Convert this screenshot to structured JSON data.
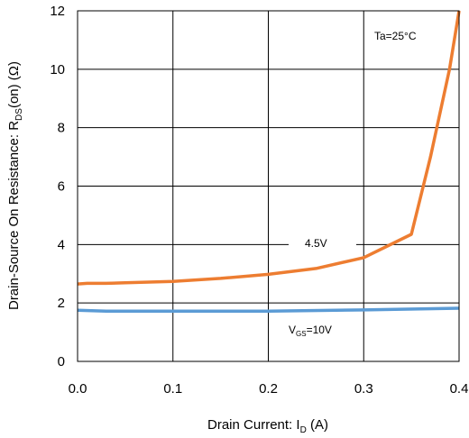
{
  "chart_data": {
    "type": "line",
    "xlabel_main": "Drain Current: I",
    "xlabel_sub": "D",
    "xlabel_unit": " (A)",
    "ylabel_main": "Drain-Source On Resistance: R",
    "ylabel_sub": "DS",
    "ylabel_unit": "(on) (Ω)",
    "xlim": [
      0.0,
      0.4
    ],
    "ylim": [
      0,
      12
    ],
    "x_ticks": [
      "0.0",
      "0.1",
      "0.2",
      "0.3",
      "0.4"
    ],
    "y_ticks": [
      "0",
      "2",
      "4",
      "6",
      "8",
      "10",
      "12"
    ],
    "grid": true,
    "series": [
      {
        "name": "4.5V",
        "color": "#ed7d31",
        "x": [
          0.0,
          0.01,
          0.03,
          0.05,
          0.1,
          0.15,
          0.2,
          0.25,
          0.3,
          0.35,
          0.37,
          0.39,
          0.4
        ],
        "values": [
          2.65,
          2.67,
          2.67,
          2.69,
          2.74,
          2.84,
          2.98,
          3.18,
          3.55,
          4.35,
          7.0,
          10.0,
          12.0
        ]
      },
      {
        "name": "V_GS=10V",
        "color": "#5b9bd5",
        "x": [
          0.0,
          0.03,
          0.1,
          0.2,
          0.3,
          0.4
        ],
        "values": [
          1.75,
          1.72,
          1.72,
          1.72,
          1.76,
          1.82
        ]
      }
    ],
    "annotations": {
      "temp": "Ta=25°C",
      "label_45": "4.5V",
      "vgs_main": "V",
      "vgs_sub": "GS",
      "vgs_rest": "=10V"
    }
  }
}
